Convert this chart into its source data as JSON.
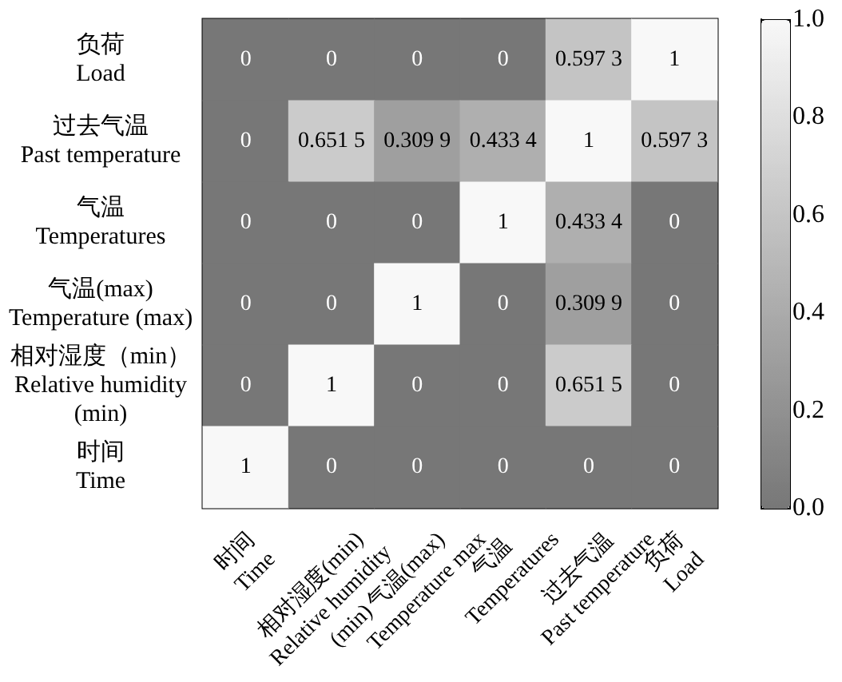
{
  "chart_data": {
    "type": "heatmap",
    "categories": [
      "时间\nTime",
      "相对湿度(min)\nRelative humidity\n(min)",
      "气温(max)\nTemperature max",
      "气温\nTemperatures",
      "过去气温\nPast temperature",
      "负荷\nLoad"
    ],
    "y_categories": [
      "负荷\nLoad",
      "过去气温\nPast temperature",
      "气温\nTemperatures",
      "气温(max)\nTemperature (max)",
      "相对湿度（min）\nRelative humidity\n(min)",
      "时间\nTime"
    ],
    "cells": [
      [
        0,
        0,
        0,
        0,
        0.5973,
        1
      ],
      [
        0,
        0.6515,
        0.3099,
        0.4334,
        1,
        0.5973
      ],
      [
        0,
        0,
        0,
        1,
        0.4334,
        0
      ],
      [
        0,
        0,
        1,
        0,
        0.3099,
        0
      ],
      [
        0,
        1,
        0,
        0,
        0.6515,
        0
      ],
      [
        1,
        0,
        0,
        0,
        0,
        0
      ]
    ],
    "cell_labels": [
      [
        "0",
        "0",
        "0",
        "0",
        "0.597 3",
        "1"
      ],
      [
        "0",
        "0.651 5",
        "0.309 9",
        "0.433 4",
        "1",
        "0.597 3"
      ],
      [
        "0",
        "0",
        "0",
        "1",
        "0.433 4",
        "0"
      ],
      [
        "0",
        "0",
        "1",
        "0",
        "0.309 9",
        "0"
      ],
      [
        "0",
        "1",
        "0",
        "0",
        "0.651 5",
        "0"
      ],
      [
        "1",
        "0",
        "0",
        "0",
        "0",
        "0"
      ]
    ],
    "clim": [
      0,
      1
    ],
    "cticks": [
      {
        "value": 0,
        "label": "0.0"
      },
      {
        "value": 0.2,
        "label": "0.2"
      },
      {
        "value": 0.4,
        "label": "0.4"
      },
      {
        "value": 0.6,
        "label": "0.6"
      },
      {
        "value": 0.8,
        "label": "0.8"
      },
      {
        "value": 1,
        "label": "1.0"
      }
    ]
  }
}
